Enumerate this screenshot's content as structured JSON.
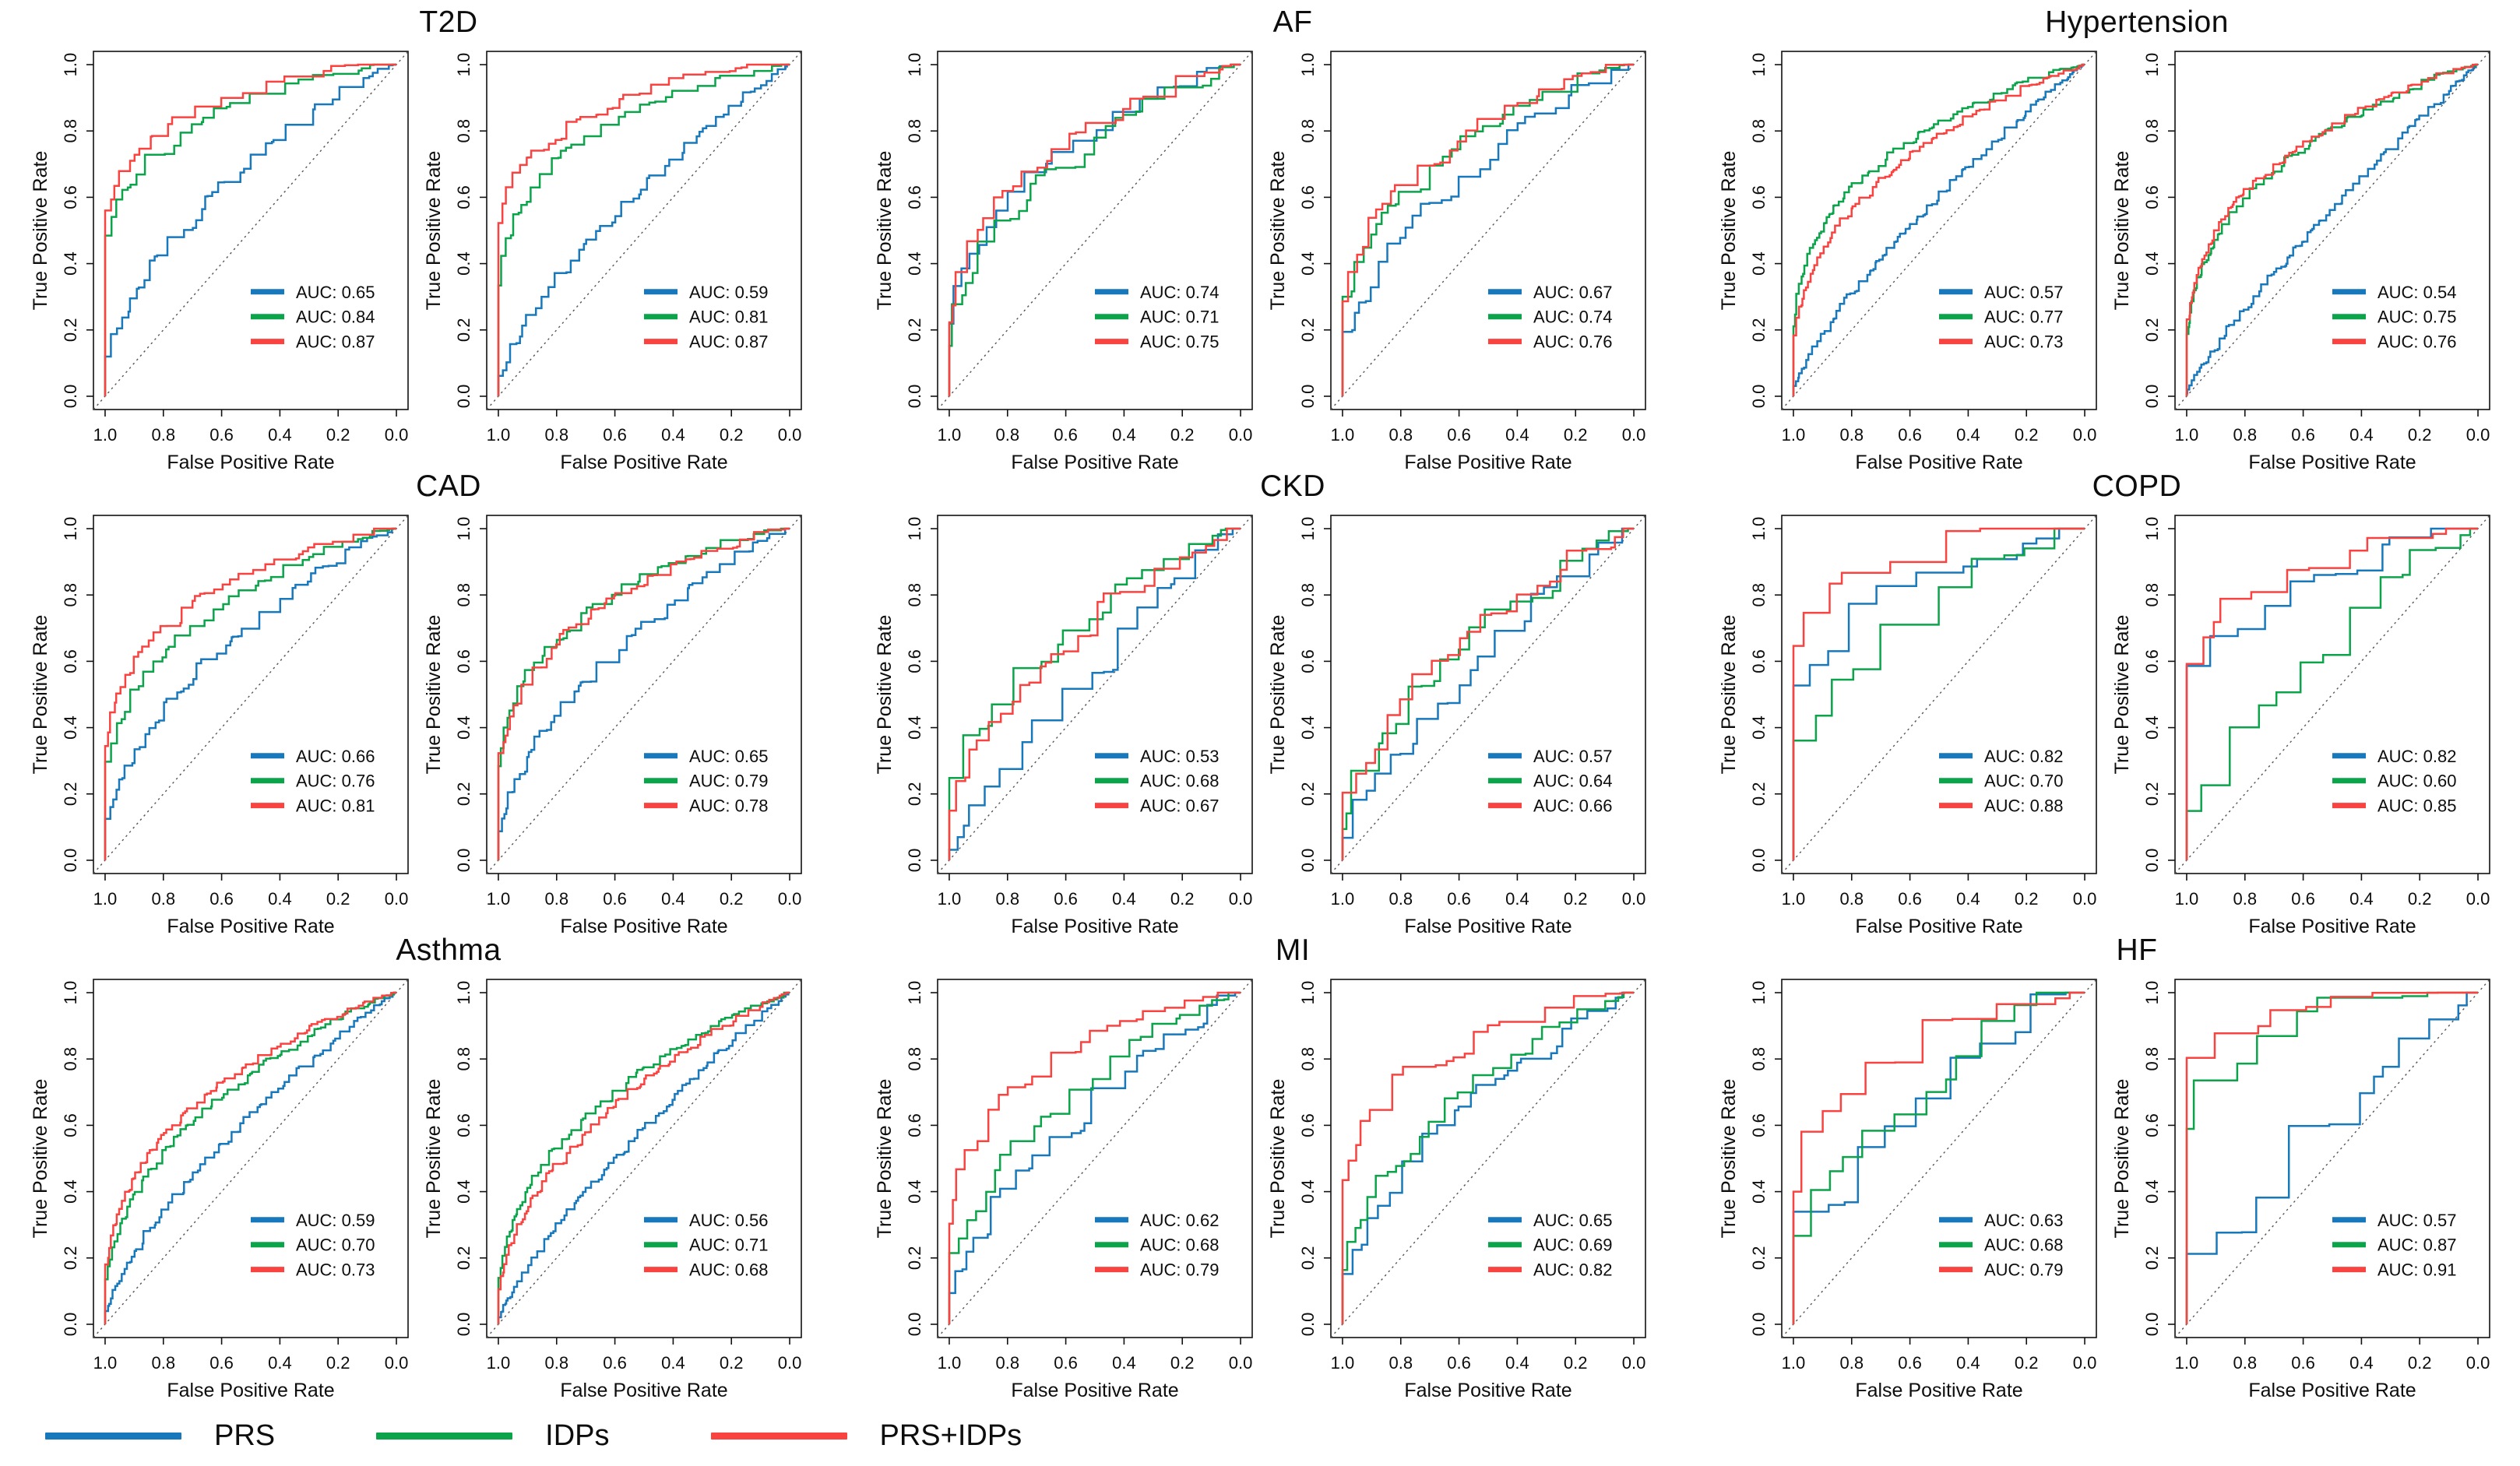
{
  "figure": {
    "background": "#ffffff",
    "text_color": "#0d0d0d"
  },
  "chart_data": {
    "type": "line",
    "subtype": "roc-step-curves",
    "description": "Grid of paired ROC curve panels (two validation panels per disease) comparing PRS, IDPs and PRS+IDPs classifiers. Empirical step curves with dotted chance diagonal; per-panel legend reports AUC of each curve.",
    "x_axis": {
      "label": "False Positive Rate",
      "tick_labels": [
        "1.0",
        "0.8",
        "0.6",
        "0.4",
        "0.2",
        "0.0"
      ],
      "range_left_to_right": [
        1.0,
        0.0
      ],
      "grid": false
    },
    "y_axis": {
      "label": "True Positive Rate",
      "tick_labels": [
        "0.0",
        "0.2",
        "0.4",
        "0.6",
        "0.8",
        "1.0"
      ],
      "range_bottom_to_top": [
        0.0,
        1.0
      ],
      "grid": false
    },
    "diagonal_reference_line": {
      "shown": true,
      "style": "dotted",
      "color": "#555555"
    },
    "auc_label_prefix": "AUC: ",
    "series_meta": [
      {
        "key": "prs",
        "name": "PRS",
        "color": "#1878BC"
      },
      {
        "key": "idps",
        "name": "IDPs",
        "color": "#0BA44B"
      },
      {
        "key": "prs_idps",
        "name": "PRS+IDPs",
        "color": "#F94341"
      }
    ],
    "layout_hints": {
      "rows": 3,
      "conditions_per_row": 3,
      "panels_per_condition": 2,
      "panel_legend_position": "lower-right-inside",
      "figure_legend_position": "bottom-left"
    },
    "conditions": [
      {
        "name": "T2D",
        "step_detail": 70,
        "panels": [
          {
            "auc": {
              "prs": 0.65,
              "idps": 0.84,
              "prs_idps": 0.87
            }
          },
          {
            "auc": {
              "prs": 0.59,
              "idps": 0.81,
              "prs_idps": 0.87
            }
          }
        ]
      },
      {
        "name": "AF",
        "step_detail": 46,
        "panels": [
          {
            "auc": {
              "prs": 0.74,
              "idps": 0.71,
              "prs_idps": 0.75
            }
          },
          {
            "auc": {
              "prs": 0.67,
              "idps": 0.74,
              "prs_idps": 0.76
            }
          }
        ]
      },
      {
        "name": "Hypertension",
        "step_detail": 170,
        "panels": [
          {
            "auc": {
              "prs": 0.57,
              "idps": 0.77,
              "prs_idps": 0.73
            }
          },
          {
            "auc": {
              "prs": 0.54,
              "idps": 0.75,
              "prs_idps": 0.76
            }
          }
        ]
      },
      {
        "name": "CAD",
        "step_detail": 85,
        "panels": [
          {
            "auc": {
              "prs": 0.66,
              "idps": 0.76,
              "prs_idps": 0.81
            }
          },
          {
            "auc": {
              "prs": 0.65,
              "idps": 0.79,
              "prs_idps": 0.78
            }
          }
        ]
      },
      {
        "name": "CKD",
        "step_detail": 30,
        "panels": [
          {
            "auc": {
              "prs": 0.53,
              "idps": 0.68,
              "prs_idps": 0.67
            }
          },
          {
            "auc": {
              "prs": 0.57,
              "idps": 0.64,
              "prs_idps": 0.66
            }
          }
        ]
      },
      {
        "name": "COPD",
        "step_detail": 16,
        "panels": [
          {
            "auc": {
              "prs": 0.82,
              "idps": 0.7,
              "prs_idps": 0.88
            }
          },
          {
            "auc": {
              "prs": 0.82,
              "idps": 0.6,
              "prs_idps": 0.85
            }
          }
        ]
      },
      {
        "name": "Asthma",
        "step_detail": 150,
        "panels": [
          {
            "auc": {
              "prs": 0.59,
              "idps": 0.7,
              "prs_idps": 0.73
            }
          },
          {
            "auc": {
              "prs": 0.56,
              "idps": 0.71,
              "prs_idps": 0.68
            }
          }
        ]
      },
      {
        "name": "MI",
        "step_detail": 36,
        "panels": [
          {
            "auc": {
              "prs": 0.62,
              "idps": 0.68,
              "prs_idps": 0.79
            }
          },
          {
            "auc": {
              "prs": 0.65,
              "idps": 0.69,
              "prs_idps": 0.82
            }
          }
        ]
      },
      {
        "name": "HF",
        "step_detail": 14,
        "panels": [
          {
            "auc": {
              "prs": 0.63,
              "idps": 0.68,
              "prs_idps": 0.79
            }
          },
          {
            "auc": {
              "prs": 0.57,
              "idps": 0.87,
              "prs_idps": 0.91
            }
          }
        ]
      }
    ]
  }
}
